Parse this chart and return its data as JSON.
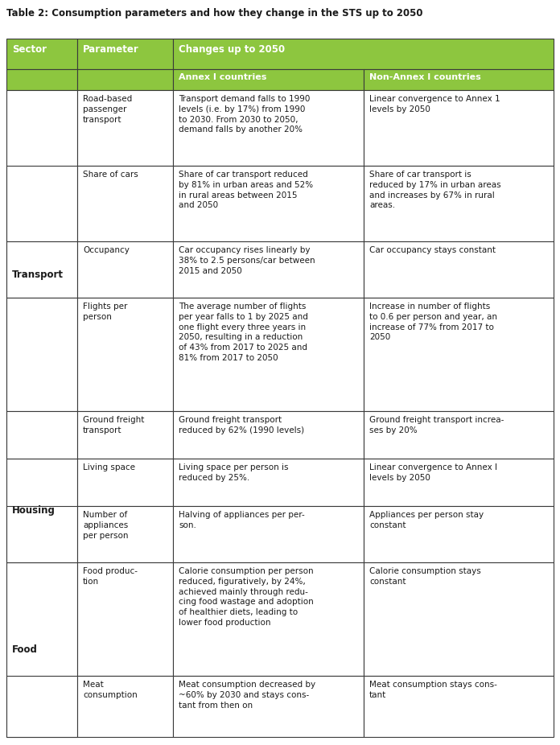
{
  "title": "Table 2: Consumption parameters and how they change in the STS up to 2050",
  "header_bg": "#8dc63f",
  "border_color": "#3a3a3a",
  "header_text_color": "#ffffff",
  "cell_text_color": "#1a1a1a",
  "title_color": "#1a1a1a",
  "rows": [
    {
      "sector": "Transport",
      "sector_span": 5,
      "parameter": "Road-based\npassenger\ntransport",
      "annex": "Transport demand falls to 1990\nlevels (i.e. by 17%) from 1990\nto 2030. From 2030 to 2050,\ndemand falls by another 20%",
      "non_annex": "Linear convergence to Annex 1\nlevels by 2050"
    },
    {
      "sector": "",
      "parameter": "Share of cars",
      "annex": "Share of car transport reduced\nby 81% in urban areas and 52%\nin rural areas between 2015\nand 2050",
      "non_annex": "Share of car transport is\nreduced by 17% in urban areas\nand increases by 67% in rural\nareas."
    },
    {
      "sector": "",
      "parameter": "Occupancy",
      "annex": "Car occupancy rises linearly by\n38% to 2.5 persons/car between\n2015 and 2050",
      "non_annex": "Car occupancy stays constant"
    },
    {
      "sector": "",
      "parameter": "Flights per\nperson",
      "annex": "The average number of flights\nper year falls to 1 by 2025 and\none flight every three years in\n2050, resulting in a reduction\nof 43% from 2017 to 2025 and\n81% from 2017 to 2050",
      "non_annex": "Increase in number of flights\nto 0.6 per person and year, an\nincrease of 77% from 2017 to\n2050"
    },
    {
      "sector": "",
      "parameter": "Ground freight\ntransport",
      "annex": "Ground freight transport\nreduced by 62% (1990 levels)",
      "non_annex": "Ground freight transport increa-\nses by 20%"
    },
    {
      "sector": "Housing",
      "sector_span": 2,
      "parameter": "Living space",
      "annex": "Living space per person is\nreduced by 25%.",
      "non_annex": "Linear convergence to Annex I\nlevels by 2050"
    },
    {
      "sector": "",
      "parameter": "Number of\nappliances\nper person",
      "annex": "Halving of appliances per per-\nson.",
      "non_annex": "Appliances per person stay\nconstant"
    },
    {
      "sector": "Food",
      "sector_span": 2,
      "parameter": "Food produc-\ntion",
      "annex": "Calorie consumption per person\nreduced, figuratively, by 24%,\nachieved mainly through redu-\ncing food wastage and adoption\nof healthier diets, leading to\nlower food production",
      "non_annex": "Calorie consumption stays\nconstant"
    },
    {
      "sector": "",
      "parameter": "Meat\nconsumption",
      "annex": "Meat consumption decreased by\n~60% by 2030 and stays cons-\ntant from then on",
      "non_annex": "Meat consumption stays cons-\ntant"
    }
  ]
}
